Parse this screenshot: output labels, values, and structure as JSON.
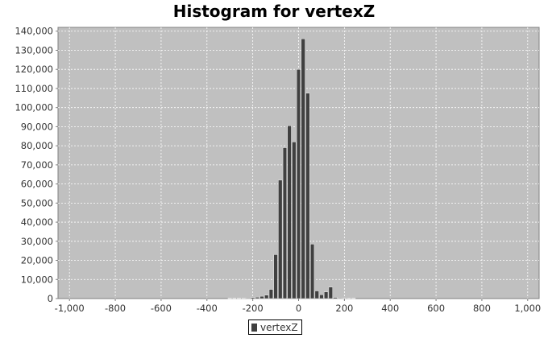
{
  "chart_data": {
    "type": "bar",
    "title": "Histogram for vertexZ",
    "xlabel": "",
    "ylabel": "",
    "xlim": [
      -1050,
      1050
    ],
    "ylim": [
      0,
      142000
    ],
    "grid": true,
    "legend_position": "bottom-center",
    "bin_width": 20,
    "x_tick_values": [
      -1000,
      -800,
      -600,
      -400,
      -200,
      0,
      200,
      400,
      600,
      800,
      1000
    ],
    "x_tick_labels": [
      "-1,000",
      "-800",
      "-600",
      "-400",
      "-200",
      "0",
      "200",
      "400",
      "600",
      "800",
      "1,000"
    ],
    "y_tick_values": [
      0,
      10000,
      20000,
      30000,
      40000,
      50000,
      60000,
      70000,
      80000,
      90000,
      100000,
      110000,
      120000,
      130000,
      140000
    ],
    "y_tick_labels": [
      "0",
      "10,000",
      "20,000",
      "30,000",
      "40,000",
      "50,000",
      "60,000",
      "70,000",
      "80,000",
      "90,000",
      "100,000",
      "110,000",
      "120,000",
      "130,000",
      "140,000"
    ],
    "series": [
      {
        "name": "vertexZ",
        "color": "#404040",
        "bins": [
          {
            "x": -300,
            "value": 100
          },
          {
            "x": -280,
            "value": 100
          },
          {
            "x": -260,
            "value": 150
          },
          {
            "x": -240,
            "value": 200
          },
          {
            "x": -220,
            "value": 300
          },
          {
            "x": -200,
            "value": 500
          },
          {
            "x": -180,
            "value": 700
          },
          {
            "x": -160,
            "value": 1200
          },
          {
            "x": -140,
            "value": 1800
          },
          {
            "x": -120,
            "value": 4800
          },
          {
            "x": -100,
            "value": 23000
          },
          {
            "x": -80,
            "value": 62000
          },
          {
            "x": -60,
            "value": 79000
          },
          {
            "x": -40,
            "value": 90500
          },
          {
            "x": -20,
            "value": 82000
          },
          {
            "x": 0,
            "value": 120000
          },
          {
            "x": 20,
            "value": 136000
          },
          {
            "x": 40,
            "value": 107500
          },
          {
            "x": 60,
            "value": 28500
          },
          {
            "x": 80,
            "value": 4000
          },
          {
            "x": 100,
            "value": 2000
          },
          {
            "x": 120,
            "value": 3500
          },
          {
            "x": 140,
            "value": 6000
          },
          {
            "x": 160,
            "value": 600
          },
          {
            "x": 180,
            "value": 300
          },
          {
            "x": 200,
            "value": 200
          },
          {
            "x": 220,
            "value": 150
          },
          {
            "x": 240,
            "value": 100
          }
        ]
      }
    ]
  },
  "colors": {
    "plot_background": "#c0c0c0",
    "gridline": "#ffffff",
    "bar": "#404040"
  }
}
